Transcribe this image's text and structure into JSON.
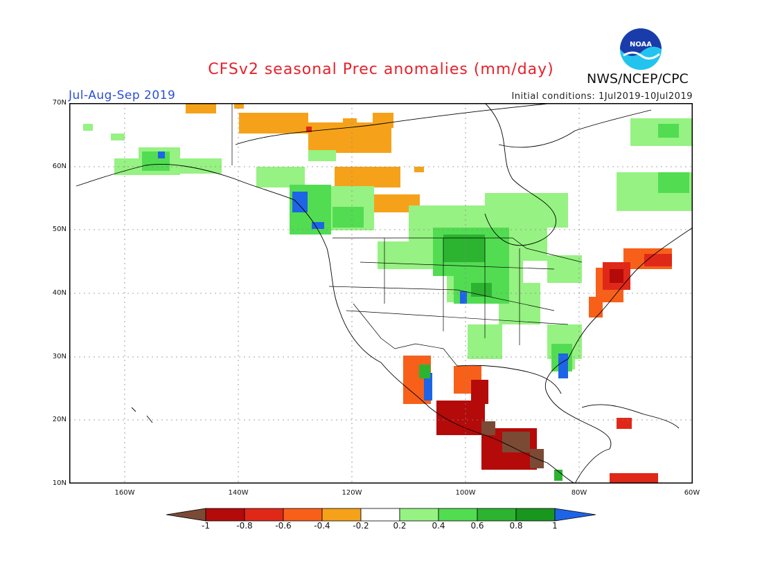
{
  "header": {
    "title": "CFSv2 seasonal Prec anomalies (mm/day)",
    "period": "Jul-Aug-Sep 2019",
    "initial_conditions": "Initial conditions: 1Jul2019-10Jul2019",
    "agency": "NWS/NCEP/CPC",
    "logo_text": "NOAA"
  },
  "axes": {
    "lat_labels": [
      "70N",
      "60N",
      "50N",
      "40N",
      "30N",
      "20N",
      "10N"
    ],
    "lon_labels": [
      "160W",
      "140W",
      "120W",
      "100W",
      "80W",
      "60W"
    ]
  },
  "colorbar": {
    "labels": [
      "-1",
      "-0.8",
      "-0.6",
      "-0.4",
      "-0.2",
      "0.2",
      "0.4",
      "0.6",
      "0.8",
      "1"
    ],
    "colors": [
      "#7b4a35",
      "#b40a0a",
      "#e02818",
      "#f8601a",
      "#f5a21a",
      "#ffffff",
      "#96f282",
      "#52dc52",
      "#2cb430",
      "#19961e",
      "#1e64e6"
    ]
  },
  "colors": {
    "title": "#e8202a",
    "period": "#2a4ed8",
    "noaa_blue": "#1a3caa",
    "noaa_cyan": "#23c3f0"
  }
}
